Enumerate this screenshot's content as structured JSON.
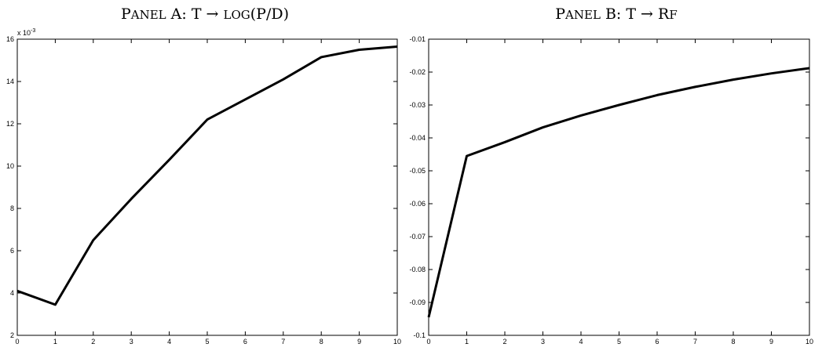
{
  "chart_data": [
    {
      "type": "line",
      "title": {
        "prefix_cap": "P",
        "prefix_sc": "ANEL",
        "label": " A: T → ",
        "func_sc": "LOG",
        "func_arg": "(P/D)"
      },
      "xlim": [
        0,
        10
      ],
      "ylim": [
        2,
        16
      ],
      "y_scale_multiplier": "x 10",
      "y_scale_exponent": "-3",
      "x_ticks": [
        "0",
        "1",
        "2",
        "3",
        "4",
        "5",
        "6",
        "7",
        "8",
        "9",
        "10"
      ],
      "y_ticks": [
        "2",
        "4",
        "6",
        "8",
        "10",
        "12",
        "14",
        "16"
      ],
      "series": [
        {
          "x": [
            0,
            1,
            2,
            3,
            4,
            5,
            6,
            7,
            8,
            9,
            10
          ],
          "y": [
            4.1,
            3.45,
            6.5,
            8.45,
            10.3,
            12.2,
            13.15,
            14.1,
            15.15,
            15.5,
            15.65
          ]
        }
      ]
    },
    {
      "type": "line",
      "title": {
        "prefix_cap": "P",
        "prefix_sc": "ANEL",
        "label": " B: T → ",
        "func_cap": "R",
        "func_sc": "F"
      },
      "xlim": [
        0,
        10
      ],
      "ylim": [
        -0.1,
        -0.01
      ],
      "x_ticks": [
        "0",
        "1",
        "2",
        "3",
        "4",
        "5",
        "6",
        "7",
        "8",
        "9",
        "10"
      ],
      "y_ticks": [
        "-0.1",
        "-0.09",
        "-0.08",
        "-0.07",
        "-0.06",
        "-0.05",
        "-0.04",
        "-0.03",
        "-0.02",
        "-0.01"
      ],
      "series": [
        {
          "x": [
            0,
            1,
            2,
            3,
            4,
            5,
            6,
            7,
            8,
            9,
            10
          ],
          "y": [
            -0.0945,
            -0.0455,
            -0.0413,
            -0.0368,
            -0.0332,
            -0.03,
            -0.027,
            -0.0245,
            -0.0223,
            -0.0204,
            -0.0188
          ]
        }
      ]
    }
  ]
}
